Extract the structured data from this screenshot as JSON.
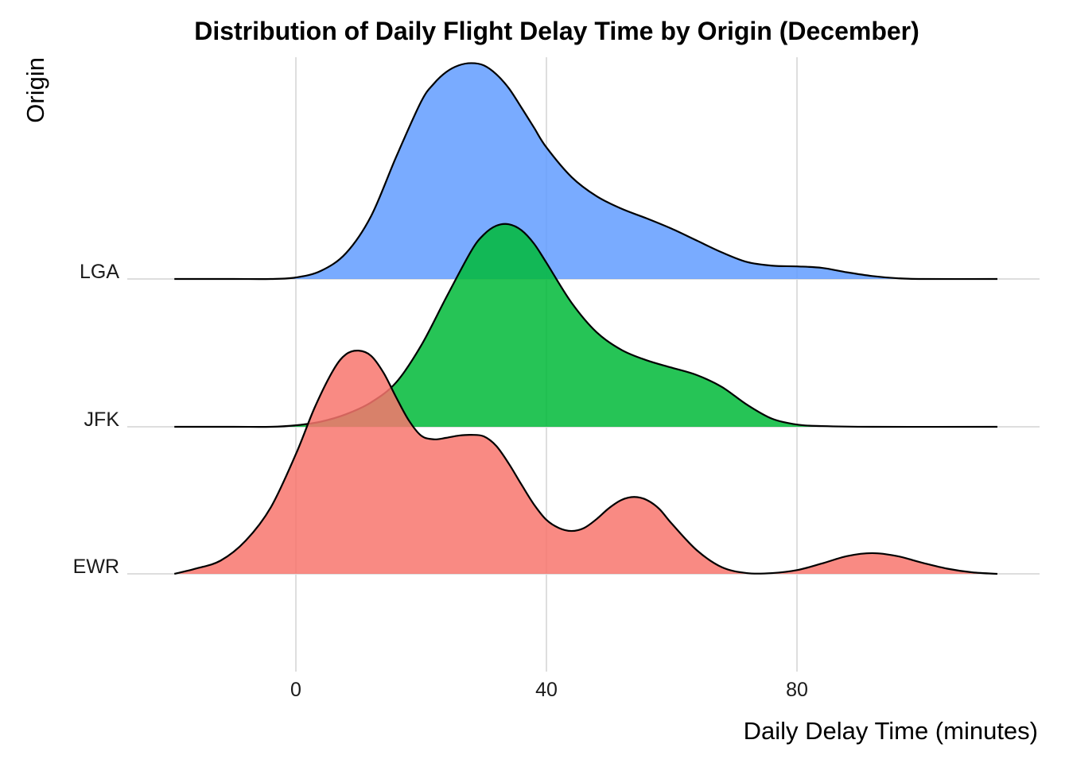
{
  "chart_data": {
    "type": "area",
    "subtype": "ridgeline-density",
    "title": "Distribution of Daily Flight Delay Time by Origin (December)",
    "xlabel": "Daily Delay Time (minutes)",
    "ylabel": "Origin",
    "xlim": [
      -19.5,
      118
    ],
    "x_ticks": [
      0,
      40,
      80
    ],
    "x_tick_labels": [
      "0",
      "40",
      "80"
    ],
    "categories": [
      "EWR",
      "JFK",
      "LGA"
    ],
    "grid": "on",
    "legend": "none",
    "series": [
      {
        "name": "EWR",
        "color": "#F8766D",
        "points": [
          [
            -19.4,
            0.0
          ],
          [
            -16,
            0.007
          ],
          [
            -12,
            0.018
          ],
          [
            -8,
            0.045
          ],
          [
            -4,
            0.09
          ],
          [
            0,
            0.162
          ],
          [
            3,
            0.225
          ],
          [
            6,
            0.276
          ],
          [
            8,
            0.297
          ],
          [
            10,
            0.302
          ],
          [
            12,
            0.295
          ],
          [
            14,
            0.272
          ],
          [
            16,
            0.239
          ],
          [
            18,
            0.208
          ],
          [
            20,
            0.187
          ],
          [
            22,
            0.182
          ],
          [
            24,
            0.184
          ],
          [
            26,
            0.187
          ],
          [
            28,
            0.188
          ],
          [
            30,
            0.186
          ],
          [
            32,
            0.173
          ],
          [
            34,
            0.149
          ],
          [
            36,
            0.121
          ],
          [
            38,
            0.094
          ],
          [
            40,
            0.073
          ],
          [
            42,
            0.062
          ],
          [
            44,
            0.058
          ],
          [
            46,
            0.062
          ],
          [
            48,
            0.074
          ],
          [
            50,
            0.089
          ],
          [
            52,
            0.1
          ],
          [
            54,
            0.104
          ],
          [
            56,
            0.1
          ],
          [
            58,
            0.088
          ],
          [
            60,
            0.068
          ],
          [
            64,
            0.032
          ],
          [
            68,
            0.009
          ],
          [
            72,
            0.001
          ],
          [
            76,
            0.001
          ],
          [
            80,
            0.005
          ],
          [
            84,
            0.014
          ],
          [
            88,
            0.024
          ],
          [
            92,
            0.028
          ],
          [
            96,
            0.024
          ],
          [
            100,
            0.015
          ],
          [
            104,
            0.007
          ],
          [
            108,
            0.002
          ],
          [
            112,
            0.0
          ]
        ]
      },
      {
        "name": "JFK",
        "color": "#00BA38",
        "points": [
          [
            -19.4,
            0.0
          ],
          [
            -10,
            0.0
          ],
          [
            -4,
            0.0
          ],
          [
            0,
            0.002
          ],
          [
            4,
            0.007
          ],
          [
            8,
            0.017
          ],
          [
            12,
            0.033
          ],
          [
            16,
            0.06
          ],
          [
            20,
            0.11
          ],
          [
            24,
            0.175
          ],
          [
            28,
            0.238
          ],
          [
            30,
            0.26
          ],
          [
            32,
            0.272
          ],
          [
            34,
            0.274
          ],
          [
            36,
            0.266
          ],
          [
            38,
            0.248
          ],
          [
            40,
            0.222
          ],
          [
            44,
            0.168
          ],
          [
            48,
            0.128
          ],
          [
            52,
            0.104
          ],
          [
            56,
            0.09
          ],
          [
            60,
            0.08
          ],
          [
            64,
            0.07
          ],
          [
            68,
            0.054
          ],
          [
            72,
            0.03
          ],
          [
            76,
            0.011
          ],
          [
            80,
            0.003
          ],
          [
            84,
            0.001
          ],
          [
            92,
            0.0
          ],
          [
            112,
            0.0
          ]
        ]
      },
      {
        "name": "LGA",
        "color": "#619CFF",
        "points": [
          [
            -19.4,
            0.0
          ],
          [
            -10,
            0.0
          ],
          [
            -4,
            0.0
          ],
          [
            0,
            0.002
          ],
          [
            4,
            0.011
          ],
          [
            8,
            0.035
          ],
          [
            12,
            0.085
          ],
          [
            16,
            0.165
          ],
          [
            20,
            0.24
          ],
          [
            22,
            0.264
          ],
          [
            24,
            0.28
          ],
          [
            26,
            0.289
          ],
          [
            28,
            0.292
          ],
          [
            30,
            0.289
          ],
          [
            32,
            0.277
          ],
          [
            34,
            0.258
          ],
          [
            36,
            0.232
          ],
          [
            38,
            0.205
          ],
          [
            40,
            0.178
          ],
          [
            44,
            0.138
          ],
          [
            48,
            0.112
          ],
          [
            52,
            0.095
          ],
          [
            56,
            0.082
          ],
          [
            60,
            0.068
          ],
          [
            64,
            0.052
          ],
          [
            68,
            0.036
          ],
          [
            72,
            0.023
          ],
          [
            76,
            0.018
          ],
          [
            80,
            0.017
          ],
          [
            84,
            0.015
          ],
          [
            88,
            0.009
          ],
          [
            92,
            0.004
          ],
          [
            96,
            0.001
          ],
          [
            100,
            0.0
          ],
          [
            112,
            0.0
          ]
        ]
      }
    ]
  }
}
